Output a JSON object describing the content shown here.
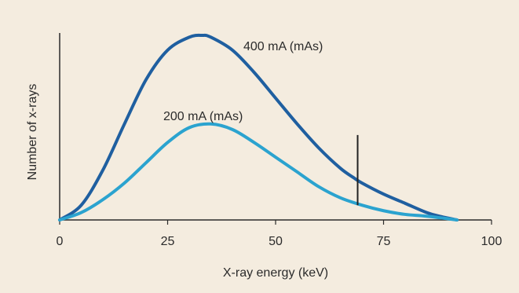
{
  "chart_data": {
    "type": "line",
    "xlabel": "X-ray energy (keV)",
    "ylabel": "Number of x-rays",
    "xlim": [
      0,
      100
    ],
    "ylim": [
      0,
      100
    ],
    "y_tick_labels_shown": false,
    "grid": false,
    "x_ticks": [
      0,
      25,
      50,
      75,
      100
    ],
    "x_tick_labels": [
      "0",
      "25",
      "50",
      "75",
      "100"
    ],
    "series": [
      {
        "name": "400 mA (mAs)",
        "color": "#1f5fa0",
        "x": [
          0,
          5,
          10,
          15,
          20,
          25,
          30,
          33,
          35,
          40,
          45,
          50,
          55,
          60,
          65,
          68,
          70,
          75,
          80,
          85,
          88,
          92
        ],
        "y": [
          0,
          8,
          27,
          52,
          76,
          92,
          99,
          100,
          99,
          92,
          80,
          66,
          52,
          39,
          28,
          23,
          20,
          14,
          9,
          4,
          2,
          0
        ]
      },
      {
        "name": "200 mA (mAs)",
        "color": "#2ba3cf",
        "x": [
          0,
          5,
          10,
          15,
          20,
          25,
          30,
          35,
          40,
          45,
          50,
          55,
          60,
          65,
          70,
          75,
          80,
          85,
          92
        ],
        "y": [
          0,
          4,
          11,
          20,
          31,
          42,
          50,
          52,
          49,
          42,
          34,
          26,
          18,
          12,
          8,
          5,
          3,
          2,
          0
        ]
      }
    ],
    "annotations": [
      {
        "type": "vertical-line",
        "x": 69,
        "y_from": 8,
        "y_to": 46,
        "color": "#222222"
      }
    ]
  }
}
